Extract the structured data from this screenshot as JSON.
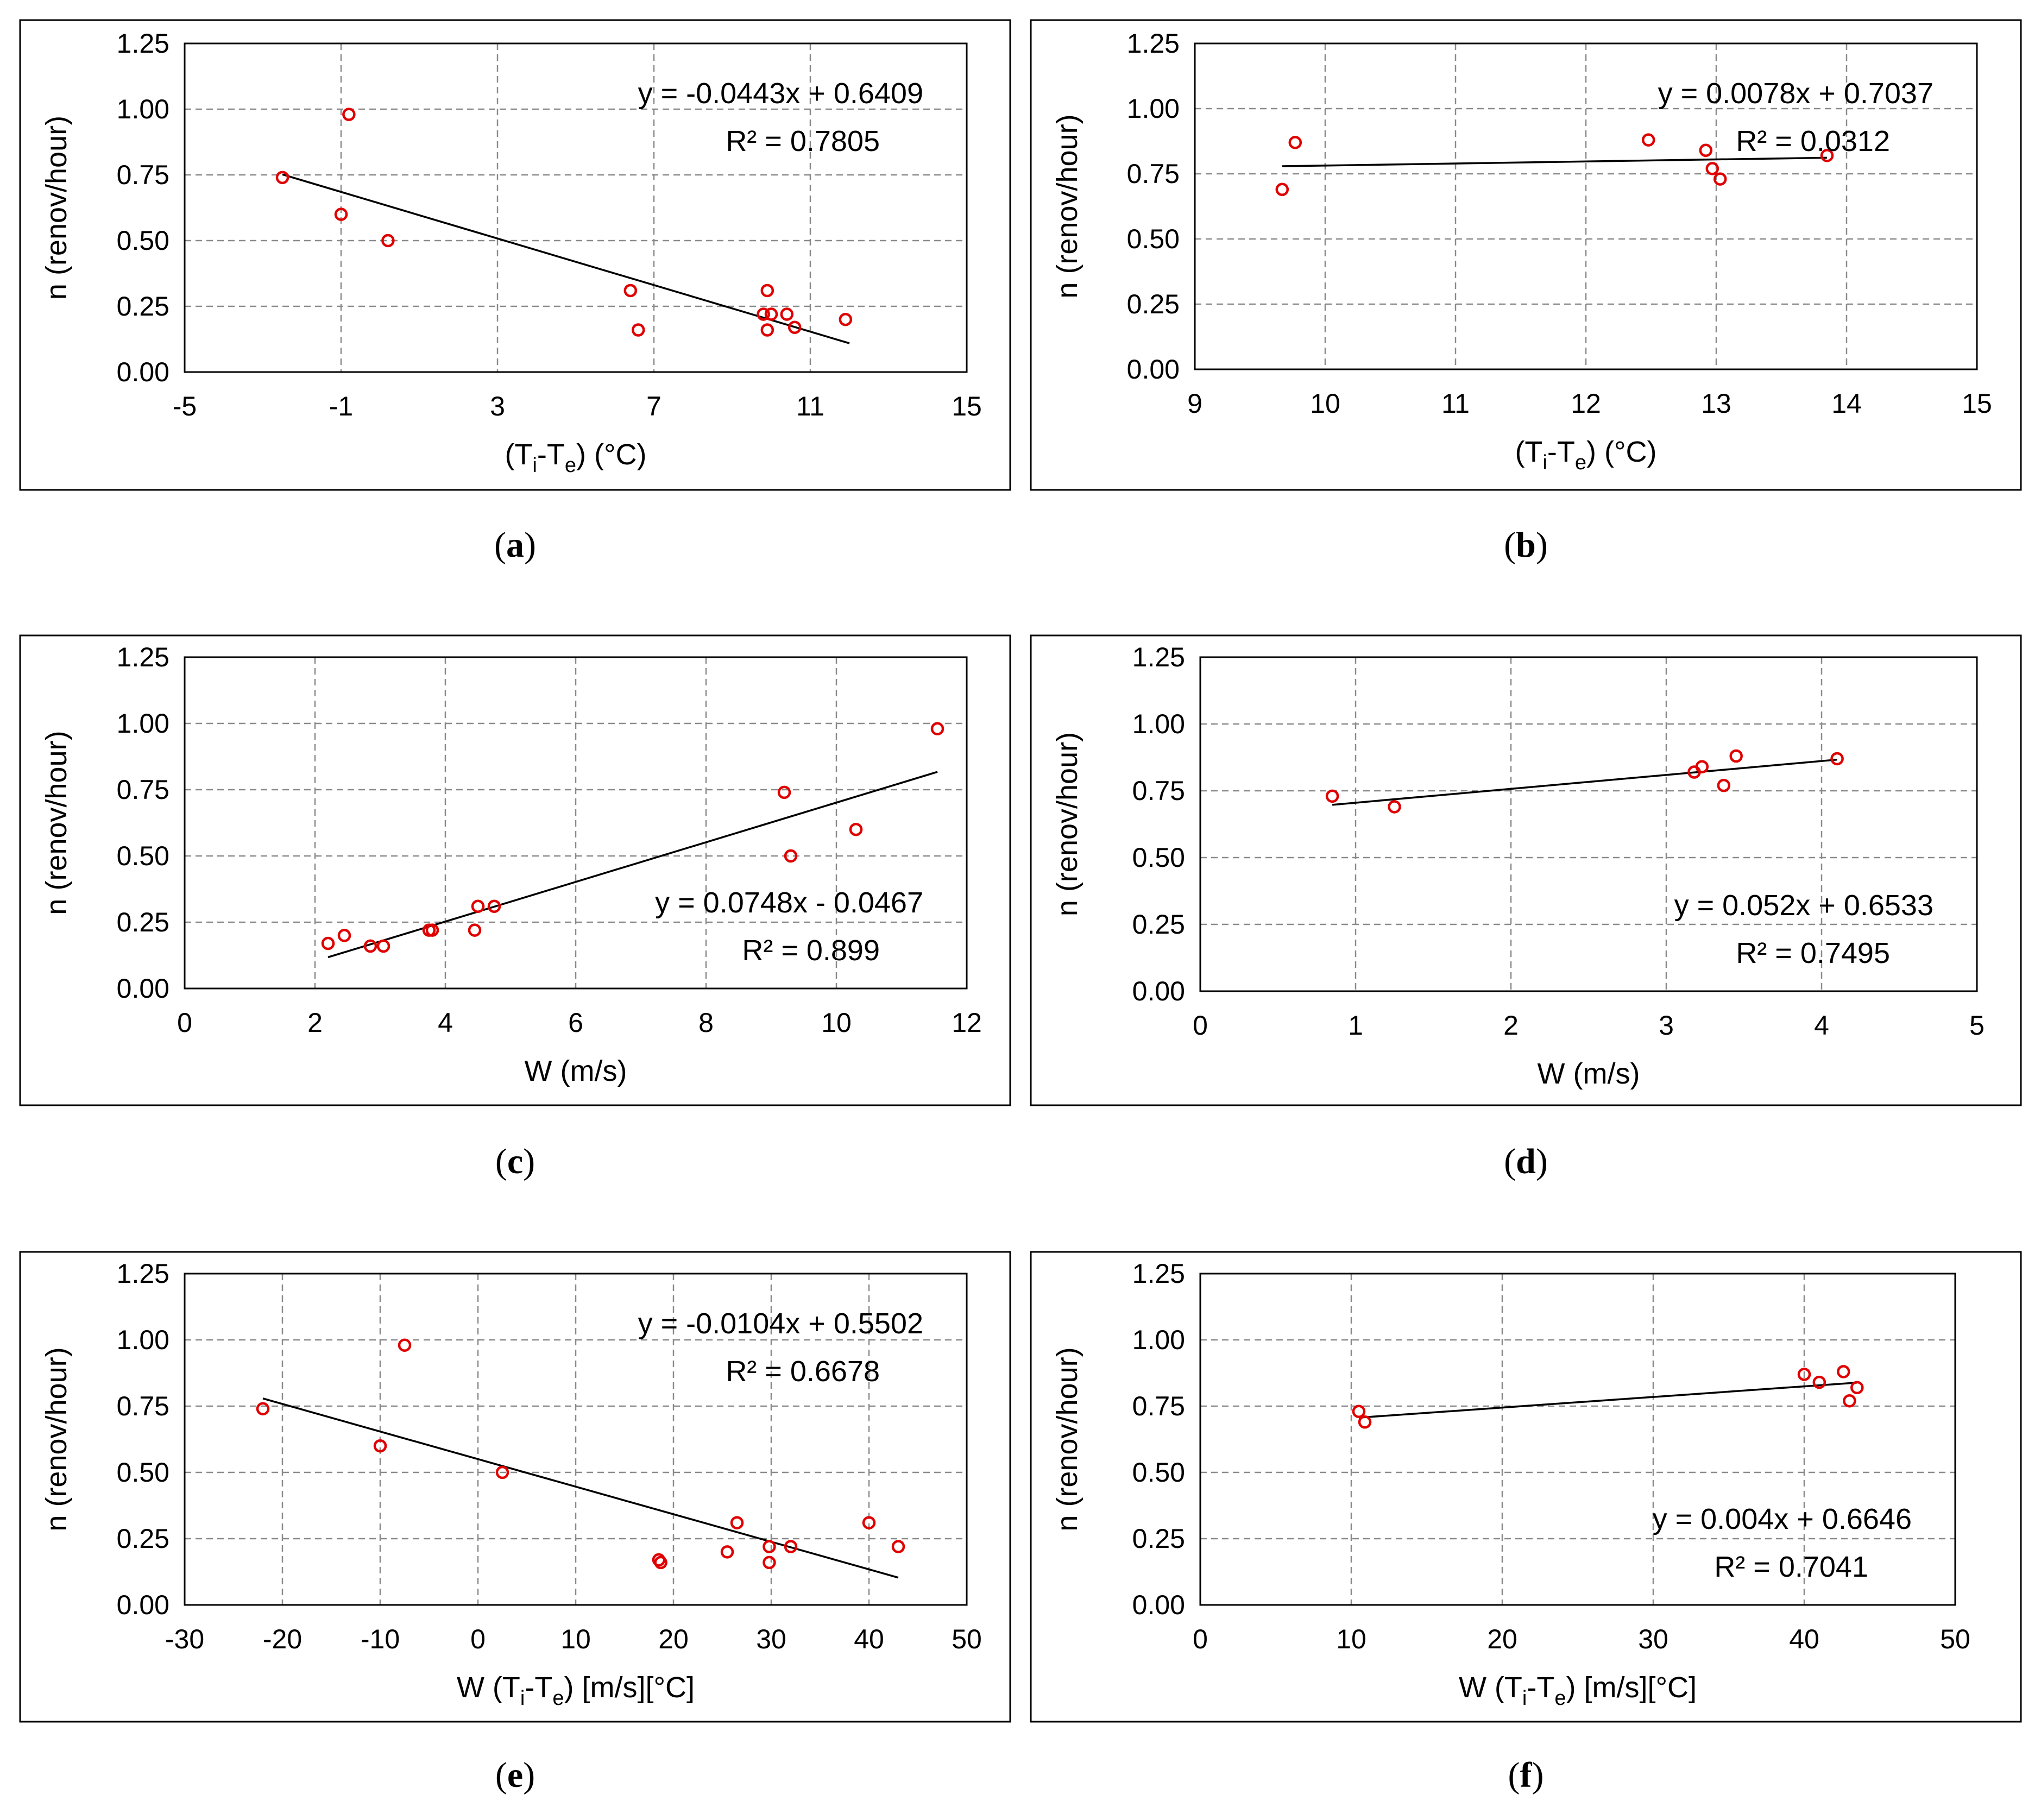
{
  "chart_data": [
    {
      "id": "a",
      "type": "scatter",
      "caption": "a",
      "xlabel_main": "(T",
      "xlabel_sub1": "i",
      "xlabel_mid": "-T",
      "xlabel_sub2": "e",
      "xlabel_tail": ") (°C)",
      "ylabel": "n (renov/hour)",
      "xlim": [
        -5,
        15
      ],
      "ylim": [
        0,
        1.25
      ],
      "xticks": [
        -5,
        -1,
        3,
        7,
        11,
        15
      ],
      "xtick_labels": [
        "-5",
        "-1",
        "3",
        "7",
        "11",
        "15"
      ],
      "yticks": [
        0,
        0.25,
        0.5,
        0.75,
        1.0,
        1.25
      ],
      "ytick_labels": [
        "0.00",
        "0.25",
        "0.50",
        "0.75",
        "1.00",
        "1.25"
      ],
      "equation": "y = -0.0443x + 0.6409",
      "r2": "R² = 0.7805",
      "annot_pos": "top-right",
      "trend": {
        "slope": -0.0443,
        "intercept": 0.6409,
        "x_range": [
          -2.5,
          12.0
        ]
      },
      "points": [
        [
          -2.5,
          0.74
        ],
        [
          -0.8,
          0.98
        ],
        [
          -1.0,
          0.6
        ],
        [
          0.2,
          0.5
        ],
        [
          6.4,
          0.31
        ],
        [
          6.6,
          0.16
        ],
        [
          9.9,
          0.31
        ],
        [
          9.8,
          0.22
        ],
        [
          10.0,
          0.22
        ],
        [
          10.4,
          0.22
        ],
        [
          9.9,
          0.16
        ],
        [
          10.6,
          0.17
        ],
        [
          11.9,
          0.2
        ]
      ]
    },
    {
      "id": "b",
      "type": "scatter",
      "caption": "b",
      "xlabel_main": "(T",
      "xlabel_sub1": "i",
      "xlabel_mid": "-T",
      "xlabel_sub2": "e",
      "xlabel_tail": ") (°C)",
      "ylabel": "n (renov/hour)",
      "xlim": [
        9,
        15
      ],
      "ylim": [
        0,
        1.25
      ],
      "xticks": [
        9,
        10,
        11,
        12,
        13,
        14,
        15
      ],
      "xtick_labels": [
        "9",
        "10",
        "11",
        "12",
        "13",
        "14",
        "15"
      ],
      "yticks": [
        0,
        0.25,
        0.5,
        0.75,
        1.0,
        1.25
      ],
      "ytick_labels": [
        "0.00",
        "0.25",
        "0.50",
        "0.75",
        "1.00",
        "1.25"
      ],
      "equation": "y = 0.0078x + 0.7037",
      "r2": "R² = 0.0312",
      "annot_pos": "top-right",
      "trend": {
        "slope": 0.0078,
        "intercept": 0.7037,
        "x_range": [
          9.67,
          13.85
        ]
      },
      "points": [
        [
          9.67,
          0.69
        ],
        [
          9.77,
          0.87
        ],
        [
          12.48,
          0.88
        ],
        [
          12.92,
          0.84
        ],
        [
          12.97,
          0.77
        ],
        [
          13.03,
          0.73
        ],
        [
          13.85,
          0.82
        ]
      ]
    },
    {
      "id": "c",
      "type": "scatter",
      "caption": "c",
      "xlabel_main": "W (m/s)",
      "xlabel_sub1": "",
      "xlabel_mid": "",
      "xlabel_sub2": "",
      "xlabel_tail": "",
      "ylabel": "n (renov/hour)",
      "xlim": [
        0,
        12
      ],
      "ylim": [
        0,
        1.25
      ],
      "xticks": [
        0,
        2,
        4,
        6,
        8,
        10,
        12
      ],
      "xtick_labels": [
        "0",
        "2",
        "4",
        "6",
        "8",
        "10",
        "12"
      ],
      "yticks": [
        0,
        0.25,
        0.5,
        0.75,
        1.0,
        1.25
      ],
      "ytick_labels": [
        "0.00",
        "0.25",
        "0.50",
        "0.75",
        "1.00",
        "1.25"
      ],
      "equation": "y = 0.0748x - 0.0467",
      "r2": "R² = 0.899",
      "annot_pos": "bottom-right",
      "trend": {
        "slope": 0.0748,
        "intercept": -0.0467,
        "x_range": [
          2.2,
          11.55
        ]
      },
      "points": [
        [
          2.2,
          0.17
        ],
        [
          2.45,
          0.2
        ],
        [
          2.85,
          0.16
        ],
        [
          3.05,
          0.16
        ],
        [
          3.75,
          0.22
        ],
        [
          3.8,
          0.22
        ],
        [
          4.45,
          0.22
        ],
        [
          4.5,
          0.31
        ],
        [
          4.75,
          0.31
        ],
        [
          9.2,
          0.74
        ],
        [
          9.3,
          0.5
        ],
        [
          10.3,
          0.6
        ],
        [
          11.55,
          0.98
        ]
      ]
    },
    {
      "id": "d",
      "type": "scatter",
      "caption": "d",
      "xlabel_main": "W (m/s)",
      "xlabel_sub1": "",
      "xlabel_mid": "",
      "xlabel_sub2": "",
      "xlabel_tail": "",
      "ylabel": "n (renov/hour)",
      "xlim": [
        0,
        5
      ],
      "ylim": [
        0,
        1.25
      ],
      "xticks": [
        0,
        1,
        2,
        3,
        4,
        5
      ],
      "xtick_labels": [
        "0",
        "1",
        "2",
        "3",
        "4",
        "5"
      ],
      "yticks": [
        0,
        0.25,
        0.5,
        0.75,
        1.0,
        1.25
      ],
      "ytick_labels": [
        "0.00",
        "0.25",
        "0.50",
        "0.75",
        "1.00",
        "1.25"
      ],
      "equation": "y = 0.052x + 0.6533",
      "r2": "R² = 0.7495",
      "annot_pos": "bottom-right",
      "trend": {
        "slope": 0.052,
        "intercept": 0.6533,
        "x_range": [
          0.85,
          4.1
        ]
      },
      "points": [
        [
          0.85,
          0.73
        ],
        [
          1.25,
          0.69
        ],
        [
          3.18,
          0.82
        ],
        [
          3.23,
          0.84
        ],
        [
          3.45,
          0.88
        ],
        [
          3.37,
          0.77
        ],
        [
          4.1,
          0.87
        ]
      ]
    },
    {
      "id": "e",
      "type": "scatter",
      "caption": "e",
      "xlabel_main": "W (T",
      "xlabel_sub1": "i",
      "xlabel_mid": "-T",
      "xlabel_sub2": "e",
      "xlabel_tail": ") [m/s][°C]",
      "ylabel": "n (renov/hour)",
      "xlim": [
        -30,
        50
      ],
      "ylim": [
        0,
        1.25
      ],
      "xticks": [
        -30,
        -20,
        -10,
        0,
        10,
        20,
        30,
        40,
        50
      ],
      "xtick_labels": [
        "-30",
        "-20",
        "-10",
        "0",
        "10",
        "20",
        "30",
        "40",
        "50"
      ],
      "yticks": [
        0,
        0.25,
        0.5,
        0.75,
        1.0,
        1.25
      ],
      "ytick_labels": [
        "0.00",
        "0.25",
        "0.50",
        "0.75",
        "1.00",
        "1.25"
      ],
      "equation": "y = -0.0104x + 0.5502",
      "r2": "R² = 0.6678",
      "annot_pos": "top-right",
      "trend": {
        "slope": -0.0104,
        "intercept": 0.5502,
        "x_range": [
          -22,
          43
        ]
      },
      "points": [
        [
          -22,
          0.74
        ],
        [
          -7.5,
          0.98
        ],
        [
          -10,
          0.6
        ],
        [
          2.5,
          0.5
        ],
        [
          18.5,
          0.17
        ],
        [
          18.7,
          0.16
        ],
        [
          25.5,
          0.2
        ],
        [
          26.5,
          0.31
        ],
        [
          29.8,
          0.22
        ],
        [
          29.8,
          0.16
        ],
        [
          32,
          0.22
        ],
        [
          40,
          0.31
        ],
        [
          43,
          0.22
        ]
      ]
    },
    {
      "id": "f",
      "type": "scatter",
      "caption": "f",
      "xlabel_main": "W (T",
      "xlabel_sub1": "i",
      "xlabel_mid": "-T",
      "xlabel_sub2": "e",
      "xlabel_tail": ") [m/s][°C]",
      "ylabel": "n (renov/hour)",
      "xlim": [
        0,
        50
      ],
      "ylim": [
        0,
        1.25
      ],
      "xticks": [
        0,
        10,
        20,
        30,
        40,
        50
      ],
      "xtick_labels": [
        "0",
        "10",
        "20",
        "30",
        "40",
        "50"
      ],
      "yticks": [
        0,
        0.25,
        0.5,
        0.75,
        1.0,
        1.25
      ],
      "ytick_labels": [
        "0.00",
        "0.25",
        "0.50",
        "0.75",
        "1.00",
        "1.25"
      ],
      "equation": "y = 0.004x + 0.6646",
      "r2": "R² = 0.7041",
      "annot_pos": "bottom-right",
      "trend": {
        "slope": 0.004,
        "intercept": 0.6646,
        "x_range": [
          10.5,
          43.5
        ]
      },
      "points": [
        [
          10.5,
          0.73
        ],
        [
          10.9,
          0.69
        ],
        [
          40,
          0.87
        ],
        [
          41,
          0.84
        ],
        [
          42.6,
          0.88
        ],
        [
          43.5,
          0.82
        ],
        [
          43,
          0.77
        ]
      ]
    }
  ]
}
